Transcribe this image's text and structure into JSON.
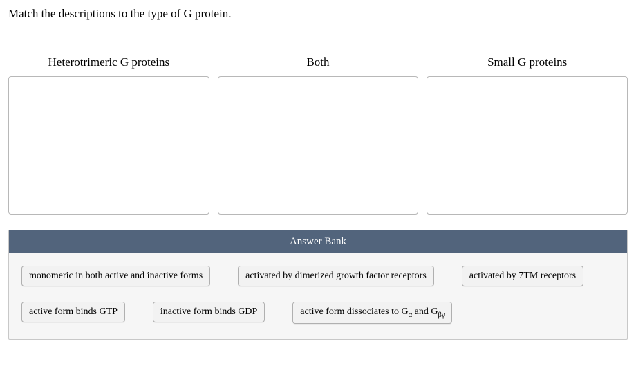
{
  "question": "Match the descriptions to the type of G protein.",
  "zones": [
    {
      "title": "Heterotrimeric G proteins"
    },
    {
      "title": "Both"
    },
    {
      "title": "Small G proteins"
    }
  ],
  "bank": {
    "header": "Answer Bank",
    "row1": {
      "c1": "monomeric in both active and inactive forms",
      "c2": "activated by dimerized growth factor receptors",
      "c3": "activated by 7TM receptors"
    },
    "row2": {
      "c1": "active form binds GTP",
      "c2": "inactive form binds GDP",
      "c3_pre": "active form dissociates to G",
      "c3_sub1": "α",
      "c3_mid": " and G",
      "c3_sub2": "βγ"
    }
  }
}
